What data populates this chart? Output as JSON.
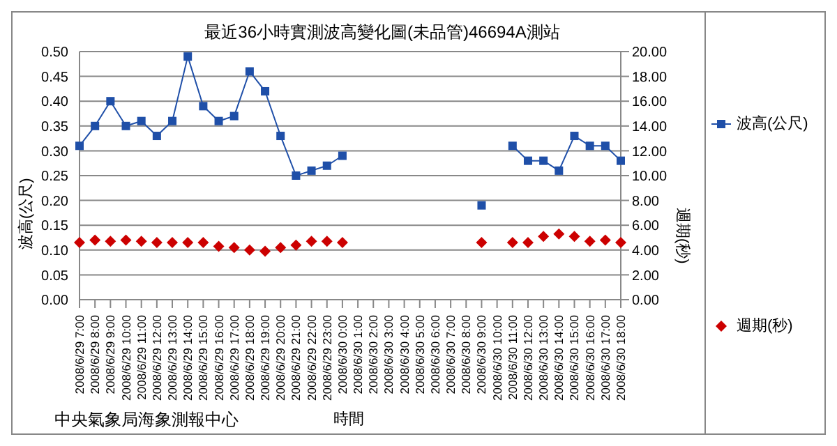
{
  "chart_data": {
    "type": "line",
    "title": "最近36小時實測波高變化圖(未品管)46694A測站",
    "xlabel": "時間",
    "ylabel": "波高(公尺)",
    "y2label": "週期(秒)",
    "annotations": [
      "中央氣象局海象測報中心"
    ],
    "categories": [
      "2008/6/29 7:00",
      "2008/6/29 8:00",
      "2008/6/29 9:00",
      "2008/6/29 10:00",
      "2008/6/29 11:00",
      "2008/6/29 12:00",
      "2008/6/29 13:00",
      "2008/6/29 14:00",
      "2008/6/29 15:00",
      "2008/6/29 16:00",
      "2008/6/29 17:00",
      "2008/6/29 18:00",
      "2008/6/29 19:00",
      "2008/6/29 20:00",
      "2008/6/29 21:00",
      "2008/6/29 22:00",
      "2008/6/29 23:00",
      "2008/6/30 0:00",
      "2008/6/30 1:00",
      "2008/6/30 2:00",
      "2008/6/30 3:00",
      "2008/6/30 4:00",
      "2008/6/30 5:00",
      "2008/6/30 6:00",
      "2008/6/30 7:00",
      "2008/6/30 8:00",
      "2008/6/30 9:00",
      "2008/6/30 10:00",
      "2008/6/30 11:00",
      "2008/6/30 12:00",
      "2008/6/30 13:00",
      "2008/6/30 14:00",
      "2008/6/30 15:00",
      "2008/6/30 16:00",
      "2008/6/30 17:00",
      "2008/6/30 18:00"
    ],
    "series": [
      {
        "name": "波高(公尺)",
        "type": "line",
        "marker": "square",
        "color": "#1f4fa8",
        "values": [
          0.31,
          0.35,
          0.4,
          0.35,
          0.36,
          0.33,
          0.36,
          0.49,
          0.39,
          0.36,
          0.37,
          0.46,
          0.42,
          0.33,
          0.25,
          0.26,
          0.27,
          0.29,
          null,
          null,
          null,
          null,
          null,
          null,
          null,
          null,
          0.19,
          null,
          0.31,
          0.28,
          0.28,
          0.26,
          0.33,
          0.31,
          0.31,
          0.28
        ]
      },
      {
        "name": "週期(秒)",
        "type": "scatter",
        "marker": "diamond",
        "axis": "y2",
        "color": "#cc0000",
        "values": [
          4.6,
          4.8,
          4.7,
          4.8,
          4.7,
          4.6,
          4.6,
          4.6,
          4.6,
          4.3,
          4.2,
          4.0,
          3.9,
          4.2,
          4.4,
          4.7,
          4.7,
          4.6,
          null,
          null,
          null,
          null,
          null,
          null,
          null,
          null,
          4.6,
          null,
          4.6,
          4.6,
          5.1,
          5.3,
          5.1,
          4.7,
          4.8,
          4.6
        ]
      }
    ],
    "ylim": [
      0,
      0.5
    ],
    "yticks": [
      {
        "value": 0,
        "label": "0.00"
      },
      {
        "value": 0.05,
        "label": "0.05"
      },
      {
        "value": 0.1,
        "label": "0.10"
      },
      {
        "value": 0.15,
        "label": "0.15"
      },
      {
        "value": 0.2,
        "label": "0.20"
      },
      {
        "value": 0.25,
        "label": "0.25"
      },
      {
        "value": 0.3,
        "label": "0.30"
      },
      {
        "value": 0.35,
        "label": "0.35"
      },
      {
        "value": 0.4,
        "label": "0.40"
      },
      {
        "value": 0.45,
        "label": "0.45"
      },
      {
        "value": 0.5,
        "label": "0.50"
      }
    ],
    "y2lim": [
      0,
      20
    ],
    "y2ticks": [
      {
        "value": 0,
        "label": "0.00"
      },
      {
        "value": 2,
        "label": "2.00"
      },
      {
        "value": 4,
        "label": "4.00"
      },
      {
        "value": 6,
        "label": "6.00"
      },
      {
        "value": 8,
        "label": "8.00"
      },
      {
        "value": 10,
        "label": "10.00"
      },
      {
        "value": 12,
        "label": "12.00"
      },
      {
        "value": 14,
        "label": "14.00"
      },
      {
        "value": 16,
        "label": "16.00"
      },
      {
        "value": 18,
        "label": "18.00"
      },
      {
        "value": 20,
        "label": "20.00"
      }
    ],
    "grid": "y",
    "legend": "right"
  }
}
